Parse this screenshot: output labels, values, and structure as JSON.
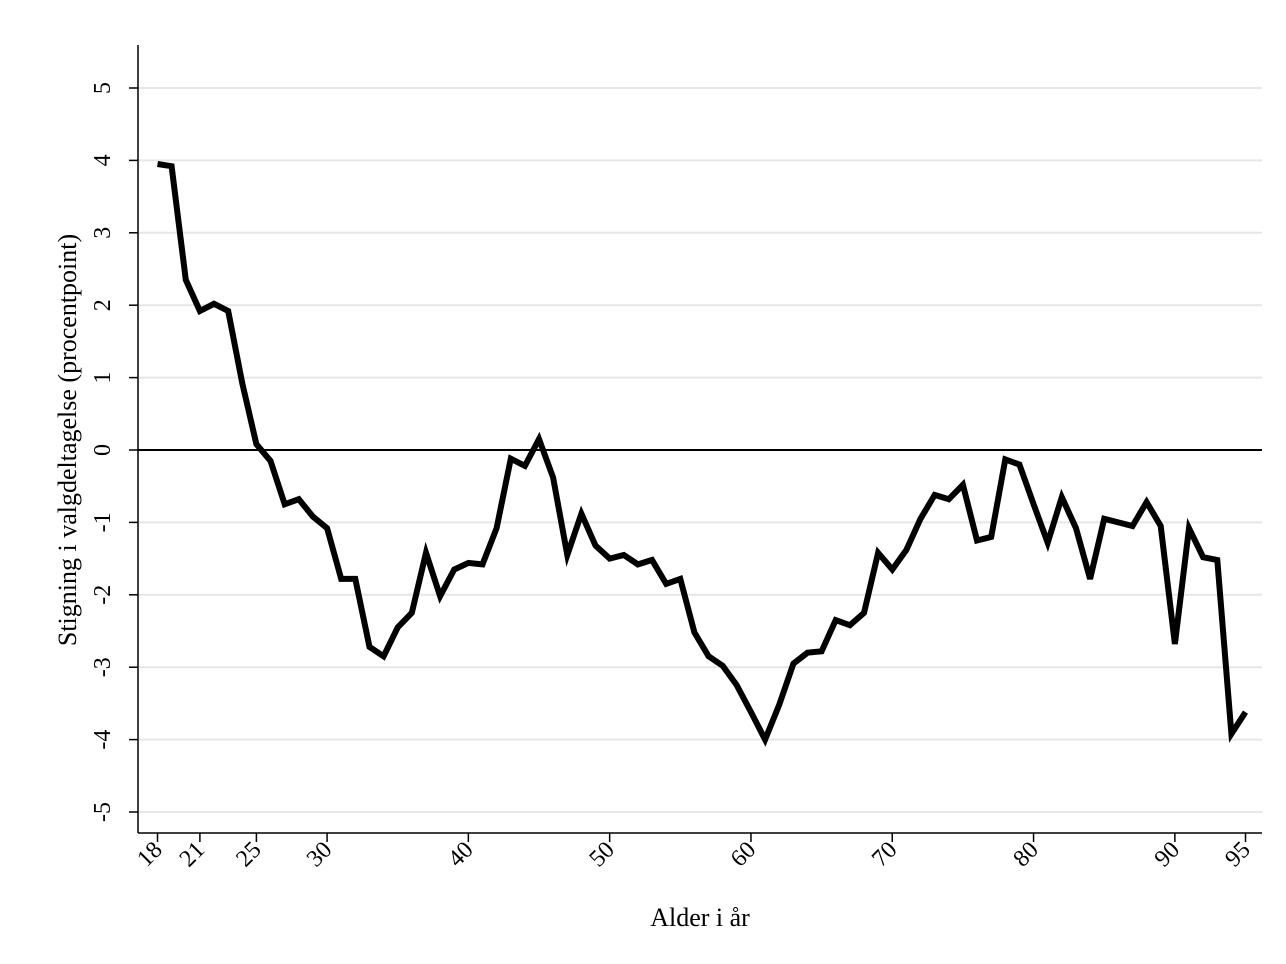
{
  "chart_data": {
    "type": "line",
    "title": "",
    "xlabel": "Alder i år",
    "ylabel": "Stigning i valgdeltagelse (procentpoint)",
    "xlim": [
      18,
      95
    ],
    "ylim": [
      -5,
      5.5
    ],
    "x_ticks": [
      18,
      21,
      25,
      30,
      40,
      50,
      60,
      70,
      80,
      90,
      95
    ],
    "y_ticks": [
      -5,
      -4,
      -3,
      -2,
      -1,
      0,
      1,
      2,
      3,
      4,
      5
    ],
    "grid": true,
    "reference_line": 0,
    "colors": {
      "line": "#000000",
      "grid": "#e6e6e6",
      "axis": "#000000",
      "background": "#ffffff"
    },
    "series": [
      {
        "x": [
          18,
          19,
          20,
          21,
          22,
          23,
          24,
          25,
          26,
          27,
          28,
          29,
          30,
          31,
          32,
          33,
          34,
          35,
          36,
          37,
          38,
          39,
          40,
          41,
          42,
          43,
          44,
          45,
          46,
          47,
          48,
          49,
          50,
          51,
          52,
          53,
          54,
          55,
          56,
          57,
          58,
          59,
          60,
          61,
          62,
          63,
          64,
          65,
          66,
          67,
          68,
          69,
          70,
          71,
          72,
          73,
          74,
          75,
          76,
          77,
          78,
          79,
          80,
          81,
          82,
          83,
          84,
          85,
          86,
          87,
          88,
          89,
          90,
          91,
          92,
          93,
          94,
          95
        ],
        "y": [
          3.95,
          3.92,
          2.35,
          1.92,
          2.02,
          1.92,
          0.92,
          0.08,
          -0.15,
          -0.75,
          -0.68,
          -0.92,
          -1.08,
          -1.78,
          -1.78,
          -2.72,
          -2.85,
          -2.45,
          -2.25,
          -1.42,
          -2.02,
          -1.65,
          -1.56,
          -1.58,
          -1.08,
          -0.12,
          -0.22,
          0.15,
          -0.38,
          -1.45,
          -0.88,
          -1.32,
          -1.5,
          -1.45,
          -1.58,
          -1.52,
          -1.85,
          -1.78,
          -2.52,
          -2.85,
          -2.98,
          -3.25,
          -3.62,
          -4.0,
          -3.52,
          -2.95,
          -2.8,
          -2.78,
          -2.35,
          -2.42,
          -2.25,
          -1.42,
          -1.65,
          -1.38,
          -0.95,
          -0.62,
          -0.68,
          -0.48,
          -1.25,
          -1.2,
          -0.13,
          -0.2,
          -0.75,
          -1.28,
          -0.65,
          -1.08,
          -1.78,
          -0.95,
          -1.0,
          -1.05,
          -0.72,
          -1.05,
          -2.68,
          -1.08,
          -1.48,
          -1.52,
          -3.92,
          -3.62
        ]
      }
    ]
  }
}
